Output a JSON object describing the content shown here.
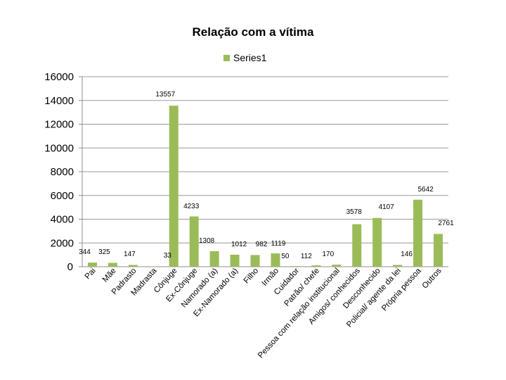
{
  "chart_data": {
    "type": "bar",
    "title": "Relação com a vítima",
    "xlabel": "",
    "ylabel": "",
    "ylim": [
      0,
      16000
    ],
    "yticks": [
      "0",
      "2000",
      "4000",
      "6000",
      "8000",
      "10000",
      "12000",
      "14000",
      "16000"
    ],
    "grid": true,
    "legend_position": "top-center",
    "categories": [
      "Pai",
      "Mãe",
      "Padrasto",
      "Madrasta",
      "Cônjuge",
      "Ex-Cônjuge",
      "Namorado (a)",
      "Ex-Namorado (a)",
      "Filho",
      "Irmão",
      "Cuidador",
      "Patrão/ chefe",
      "Pessoa com relação institucional",
      "Amigos/ conhecidos",
      "Desconhecido",
      "Policial/ agente da lei",
      "Própria pessoa",
      "Outros"
    ],
    "series": [
      {
        "name": "Series1",
        "color": "#9bbb59",
        "values": [
          344,
          325,
          147,
          33,
          13557,
          4233,
          1308,
          1012,
          982,
          1119,
          50,
          112,
          170,
          3578,
          4107,
          146,
          5642,
          2761
        ],
        "labels": [
          "344",
          "325",
          "147",
          "33",
          "13557",
          "4233",
          "1308",
          "1012",
          "982",
          "1119",
          "50",
          "112",
          "170",
          "3578",
          "4107",
          "146",
          "5642",
          "2761"
        ]
      }
    ]
  }
}
